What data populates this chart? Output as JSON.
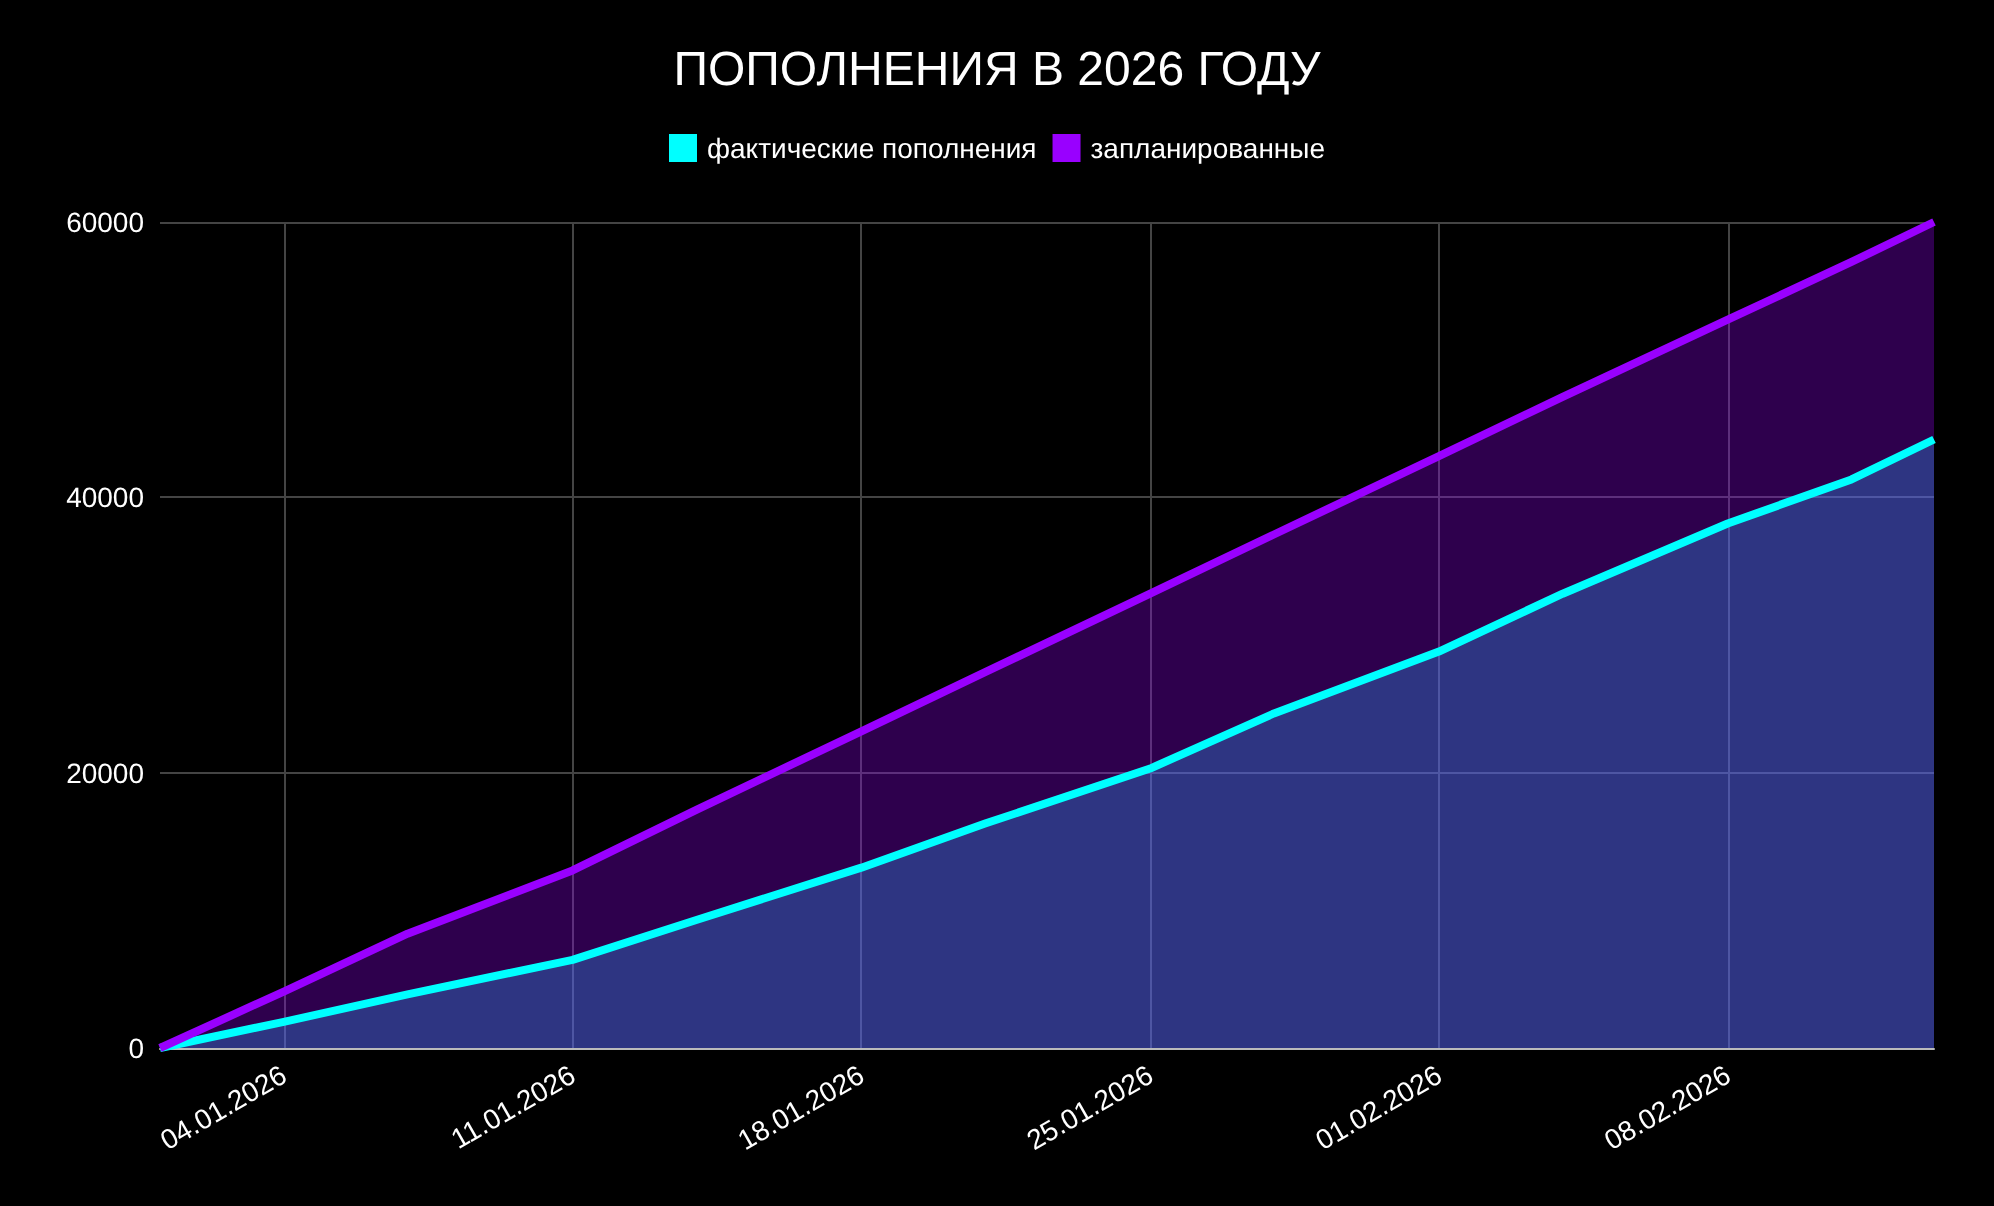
{
  "chart_data": {
    "type": "area",
    "title": "ПОПОЛНЕНИЯ В 2026 ГОДУ",
    "x": [
      "2026-01-01",
      "2026-01-04",
      "2026-01-07",
      "2026-01-11",
      "2026-01-14",
      "2026-01-18",
      "2026-01-21",
      "2026-01-25",
      "2026-01-28",
      "2026-02-01",
      "2026-02-04",
      "2026-02-08",
      "2026-02-11",
      "2026-02-13"
    ],
    "series": [
      {
        "name": "фактические пополнения",
        "color": "#00ffff",
        "values": [
          0,
          1900,
          3900,
          6400,
          9300,
          13100,
          16300,
          20300,
          24300,
          28800,
          33000,
          38100,
          41300,
          44200
        ]
      },
      {
        "name": "запланированные",
        "color": "#9900ff",
        "values": [
          0,
          4100,
          8300,
          12900,
          17300,
          23000,
          27300,
          33000,
          37300,
          43000,
          47300,
          52900,
          57100,
          60000
        ]
      }
    ],
    "xlim": [
      "2026-01-01",
      "2026-02-13"
    ],
    "xticks": [
      {
        "value": "2026-01-04",
        "label": "04.01.2026"
      },
      {
        "value": "2026-01-11",
        "label": "11.01.2026"
      },
      {
        "value": "2026-01-18",
        "label": "18.01.2026"
      },
      {
        "value": "2026-01-25",
        "label": "25.01.2026"
      },
      {
        "value": "2026-02-01",
        "label": "01.02.2026"
      },
      {
        "value": "2026-02-08",
        "label": "08.02.2026"
      }
    ],
    "ylim": [
      0,
      60000
    ],
    "yticks": [
      0,
      20000,
      40000,
      60000
    ],
    "grid": true,
    "legend": "top"
  }
}
